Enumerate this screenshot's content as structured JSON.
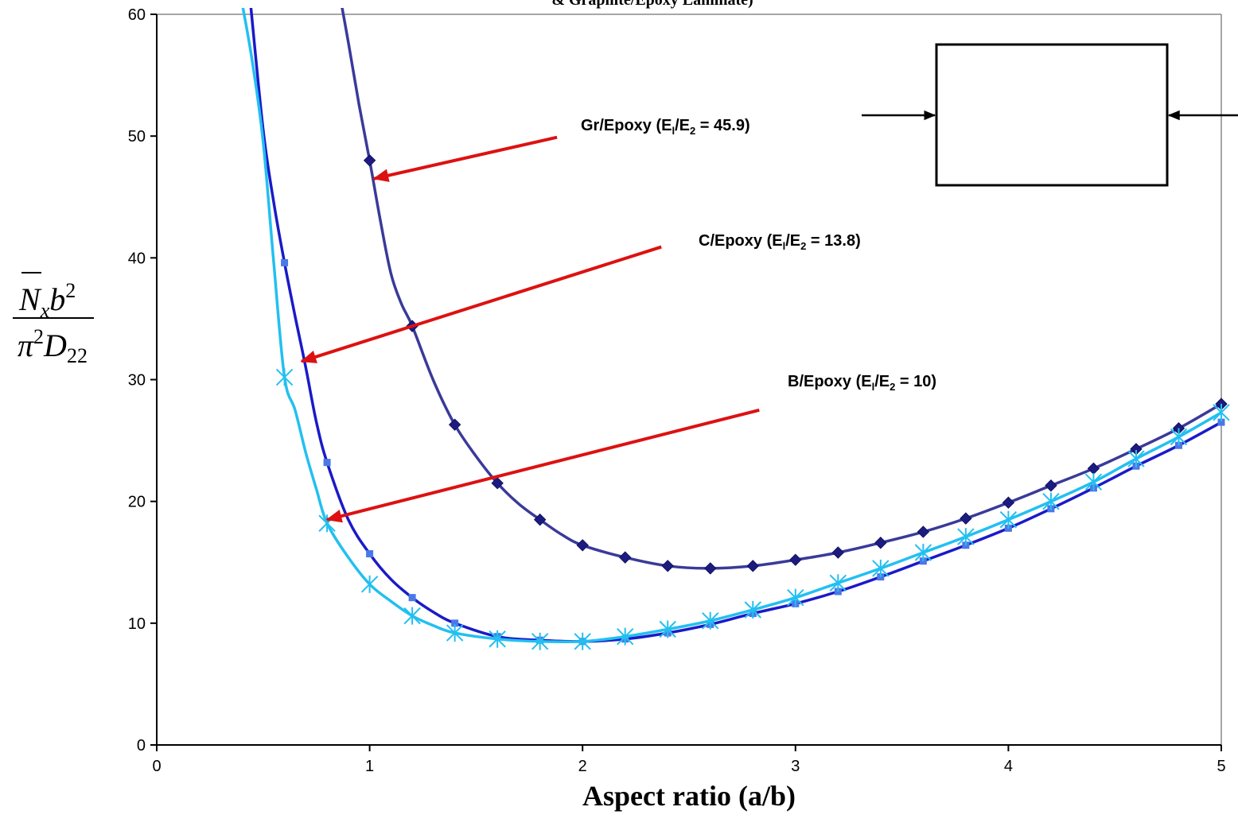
{
  "chart_data": {
    "type": "line",
    "title": "& Graphite/Epoxy Laminate)",
    "xlabel": "Aspect ratio (a/b)",
    "ylabel": {
      "numerator_symbol": "N",
      "numerator_sub": "x",
      "numerator_var": "b",
      "numerator_exp": "2",
      "denominator_symbol": "π",
      "denominator_exp": "2",
      "denominator_var": "D",
      "denominator_sub": "22"
    },
    "xlim": [
      0,
      5
    ],
    "ylim": [
      0,
      60
    ],
    "x_ticks": [
      0,
      1,
      2,
      3,
      4,
      5
    ],
    "y_ticks": [
      0,
      10,
      20,
      30,
      40,
      50,
      60
    ],
    "grid": false,
    "colors": {
      "gr_epoxy": "#3a3a9a",
      "gr_epoxy_marker": "#1c1c80",
      "c_epoxy": "#1a1ac8",
      "c_epoxy_marker": "#4a78e8",
      "b_epoxy": "#22c0f0",
      "arrow": "#dd1111",
      "axis": "#000000"
    },
    "series": [
      {
        "key": "gr",
        "marker": "diamond",
        "x": [
          0.85,
          0.9,
          0.95,
          1.0,
          1.05,
          1.1,
          1.15,
          1.2,
          1.3,
          1.4,
          1.5,
          1.6,
          1.7,
          1.8,
          1.9,
          2.0,
          2.2,
          2.4,
          2.6,
          2.8,
          3.0,
          3.2,
          3.4,
          3.6,
          3.8,
          4.0,
          4.2,
          4.4,
          4.6,
          4.8,
          5.0
        ],
        "y": [
          62.5,
          57.7,
          52.6,
          48.0,
          43.1,
          38.7,
          36.2,
          34.4,
          29.9,
          26.3,
          23.7,
          21.5,
          19.8,
          18.5,
          17.3,
          16.4,
          15.4,
          14.7,
          14.5,
          14.7,
          15.2,
          15.8,
          16.6,
          17.5,
          18.6,
          19.9,
          21.3,
          22.7,
          24.3,
          26.0,
          28.0
        ],
        "marker_x": [
          1.0,
          1.2,
          1.4,
          1.6,
          1.8,
          2.0,
          2.2,
          2.4,
          2.6,
          2.8,
          3.0,
          3.2,
          3.4,
          3.6,
          3.8,
          4.0,
          4.2,
          4.4,
          4.6,
          4.8,
          5.0
        ]
      },
      {
        "key": "c",
        "marker": "square",
        "x": [
          0.44,
          0.5,
          0.55,
          0.6,
          0.65,
          0.7,
          0.75,
          0.8,
          0.9,
          1.0,
          1.1,
          1.2,
          1.3,
          1.4,
          1.6,
          1.8,
          2.0,
          2.2,
          2.4,
          2.6,
          2.8,
          3.0,
          3.2,
          3.4,
          3.6,
          3.8,
          4.0,
          4.2,
          4.4,
          4.6,
          4.8,
          5.0
        ],
        "y": [
          61.0,
          50.5,
          44.5,
          39.6,
          35.2,
          31.0,
          26.5,
          23.2,
          18.5,
          15.7,
          13.6,
          12.1,
          10.9,
          10.0,
          8.9,
          8.6,
          8.5,
          8.7,
          9.2,
          9.9,
          10.8,
          11.6,
          12.6,
          13.8,
          15.1,
          16.4,
          17.8,
          19.4,
          21.1,
          22.9,
          24.6,
          26.5
        ],
        "marker_x": [
          0.6,
          0.8,
          1.0,
          1.2,
          1.4,
          1.6,
          1.8,
          2.0,
          2.2,
          2.4,
          2.6,
          2.8,
          3.0,
          3.2,
          3.4,
          3.6,
          3.8,
          4.0,
          4.2,
          4.4,
          4.6,
          4.8,
          5.0
        ]
      },
      {
        "key": "b",
        "marker": "asterisk",
        "x": [
          0.4,
          0.45,
          0.5,
          0.55,
          0.6,
          0.65,
          0.7,
          0.75,
          0.8,
          0.9,
          1.0,
          1.1,
          1.2,
          1.3,
          1.4,
          1.6,
          1.8,
          2.0,
          2.2,
          2.4,
          2.6,
          2.8,
          3.0,
          3.2,
          3.4,
          3.6,
          3.8,
          4.0,
          4.2,
          4.4,
          4.6,
          4.8,
          5.0
        ],
        "y": [
          61.0,
          56.0,
          49.5,
          39.5,
          30.2,
          27.5,
          24.0,
          21.0,
          18.2,
          15.4,
          13.2,
          11.8,
          10.6,
          9.8,
          9.2,
          8.7,
          8.5,
          8.5,
          8.9,
          9.5,
          10.2,
          11.1,
          12.1,
          13.3,
          14.5,
          15.8,
          17.1,
          18.5,
          20.0,
          21.6,
          23.5,
          25.3,
          27.3
        ],
        "marker_x": [
          0.6,
          0.8,
          1.0,
          1.2,
          1.4,
          1.6,
          1.8,
          2.0,
          2.2,
          2.4,
          2.6,
          2.8,
          3.0,
          3.2,
          3.4,
          3.6,
          3.8,
          4.0,
          4.2,
          4.4,
          4.6,
          4.8,
          5.0
        ]
      }
    ],
    "annotations": [
      {
        "key": "gr",
        "pre": "Gr/Epoxy (E",
        "sub1": "l",
        "mid": "/E",
        "sub2": "2",
        "post": " = 45.9)",
        "arrow_from": [
          1.88,
          49.9
        ],
        "arrow_to": [
          1.02,
          46.5
        ]
      },
      {
        "key": "c",
        "pre": "C/Epoxy (E",
        "sub1": "l",
        "mid": "/E",
        "sub2": "2",
        "post": " = 13.8)",
        "arrow_from": [
          2.37,
          40.9
        ],
        "arrow_to": [
          0.68,
          31.5
        ]
      },
      {
        "key": "b",
        "pre": "B/Epoxy (E",
        "sub1": "l",
        "mid": "/E",
        "sub2": "2",
        "post": " = 10)",
        "arrow_from": [
          2.83,
          27.5
        ],
        "arrow_to": [
          0.8,
          18.5
        ]
      }
    ]
  }
}
